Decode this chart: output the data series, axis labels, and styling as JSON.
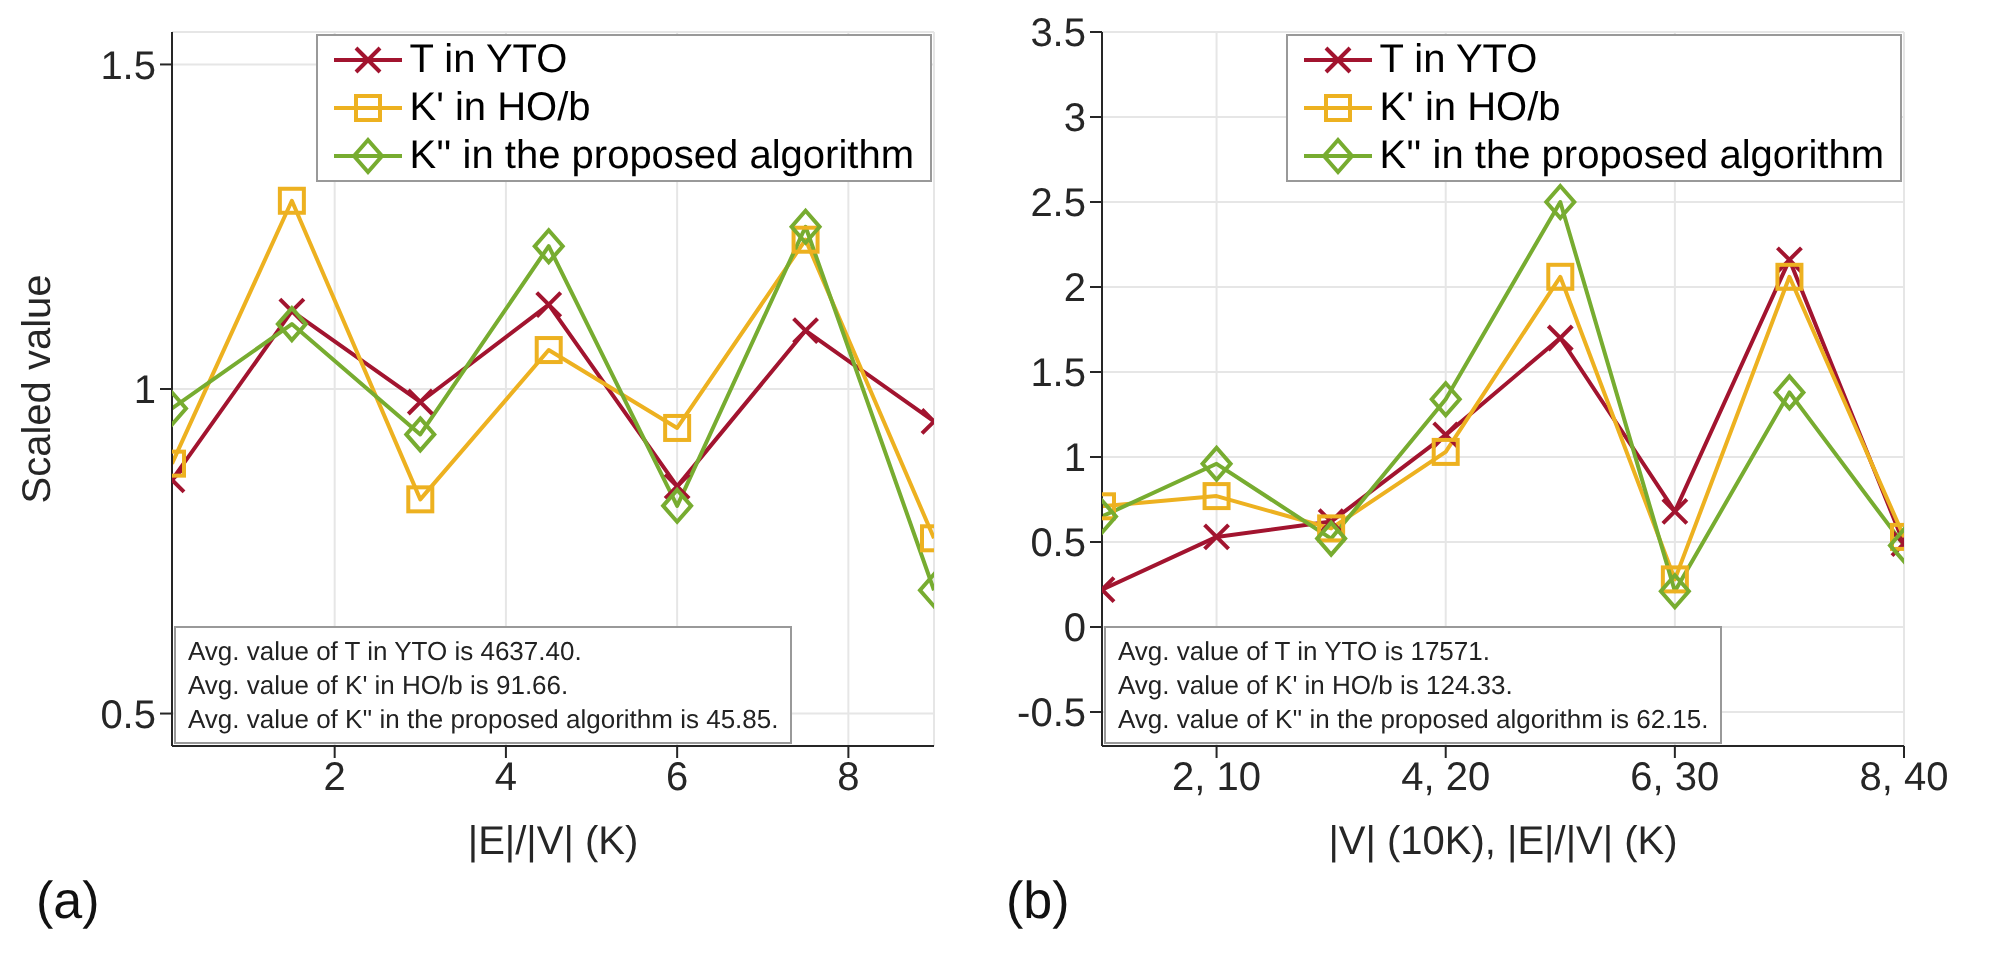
{
  "chart_data": [
    {
      "type": "line",
      "title": "(a)",
      "xlabel": "|E|/|V| (K)",
      "ylabel": "Scaled value",
      "x": [
        0.1,
        1.5,
        3,
        4.5,
        6,
        7.5,
        9
      ],
      "xlim": [
        0.1,
        9
      ],
      "xticks": [
        2,
        4,
        6,
        8
      ],
      "ylim": [
        0.45,
        1.55
      ],
      "yticks": [
        0.5,
        1,
        1.5
      ],
      "grid": true,
      "legend": "top right",
      "line_style": "solid",
      "series": [
        {
          "name": "T in YTO",
          "color": "#a2142f",
          "marker": "cross",
          "values": [
            0.86,
            1.12,
            0.98,
            1.13,
            0.85,
            1.09,
            0.95
          ]
        },
        {
          "name": "K' in HO/b",
          "color": "#edb120",
          "marker": "square",
          "values": [
            0.885,
            1.29,
            0.83,
            1.06,
            0.94,
            1.23,
            0.77
          ]
        },
        {
          "name": "K'' in the proposed algorithm",
          "color": "#77ac30",
          "marker": "diamond",
          "values": [
            0.97,
            1.1,
            0.93,
            1.22,
            0.82,
            1.25,
            0.69
          ]
        }
      ],
      "annotations": [
        "Avg. value of T in YTO is 4637.40.",
        "Avg. value of K' in HO/b is 91.66.",
        "Avg. value of K'' in the proposed algorithm is 45.85."
      ]
    },
    {
      "type": "line",
      "title": "(b)",
      "xlabel": "|V| (10K), |E|/|V| (K)",
      "categories": [
        null,
        "2, 10",
        null,
        "4, 20",
        null,
        "6, 30",
        null,
        "8, 40"
      ],
      "ylim": [
        -0.7,
        3.5
      ],
      "yticks": [
        -0.5,
        0,
        0.5,
        1,
        1.5,
        2,
        2.5,
        3,
        3.5
      ],
      "grid": true,
      "legend": "top right",
      "line_style": "solid",
      "series": [
        {
          "name": "T in YTO",
          "color": "#a2142f",
          "marker": "cross",
          "values": [
            0.22,
            0.53,
            0.62,
            1.13,
            1.7,
            0.68,
            2.16,
            0.49
          ]
        },
        {
          "name": "K' in HO/b",
          "color": "#edb120",
          "marker": "square",
          "values": [
            0.71,
            0.77,
            0.58,
            1.03,
            2.06,
            0.28,
            2.06,
            0.53
          ]
        },
        {
          "name": "K'' in the proposed algorithm",
          "color": "#77ac30",
          "marker": "diamond",
          "values": [
            0.65,
            0.96,
            0.52,
            1.34,
            2.5,
            0.21,
            1.38,
            0.48
          ]
        }
      ],
      "annotations": [
        "Avg. value of T in YTO is 17571.",
        "Avg. value of K' in HO/b is 124.33.",
        "Avg. value of K'' in the proposed algorithm is 62.15."
      ]
    }
  ]
}
